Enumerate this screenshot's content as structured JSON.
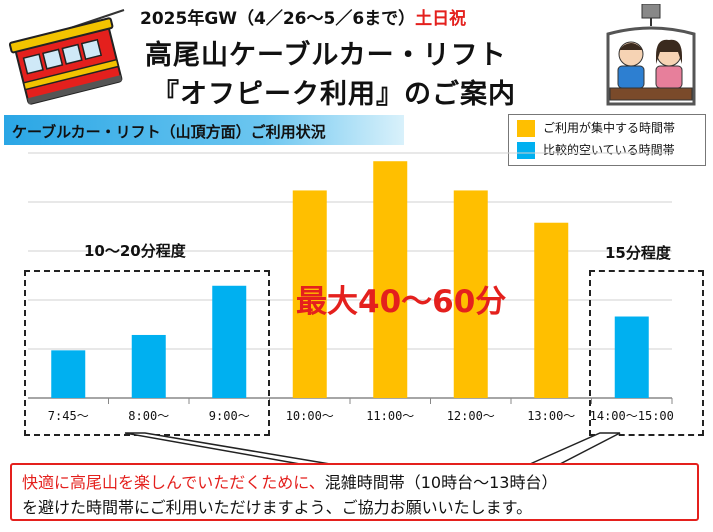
{
  "header": {
    "date_prefix": "2025年GW（4／26～5／6まで）",
    "date_highlight": "土日祝",
    "title_line1": "高尾山ケーブルカー・リフト",
    "title_line2": "『オフピーク利用』のご案内",
    "subtitle": "ケーブルカー・リフト（山頂方面）ご利用状況"
  },
  "legend": [
    {
      "label": "ご利用が集中する時間帯",
      "color": "#ffbf00"
    },
    {
      "label": "比較的空いている時間帯",
      "color": "#00b0f0"
    }
  ],
  "annotations": {
    "left_wait": "10～20分程度",
    "peak_wait": "最大40～60分",
    "right_wait": "15分程度"
  },
  "message": {
    "red_part": "快適に高尾山を楽しんでいただくために、",
    "line1_rest": "混雑時間帯（10時台～13時台）",
    "line2": "を避けた時間帯にご利用いただけますよう、ご協力お願いいたします。"
  },
  "chart_data": {
    "type": "bar",
    "title": "ケーブルカー・リフト（山頂方面）ご利用状況",
    "categories": [
      "7:45～",
      "8:00～",
      "9:00～",
      "10:00～",
      "11:00～",
      "12:00～",
      "13:00～",
      "14:00～15:00"
    ],
    "values": [
      31,
      41,
      73,
      135,
      154,
      135,
      114,
      53
    ],
    "categories_status": [
      "空",
      "空",
      "空",
      "集中",
      "集中",
      "集中",
      "集中",
      "空"
    ],
    "ylim": [
      0,
      160
    ],
    "grid": true,
    "colors": {
      "busy": "#ffbf00",
      "quiet": "#00b0f0"
    }
  },
  "icons": {
    "cable_car": "cable-car-icon",
    "chairlift": "chairlift-couple-icon"
  }
}
